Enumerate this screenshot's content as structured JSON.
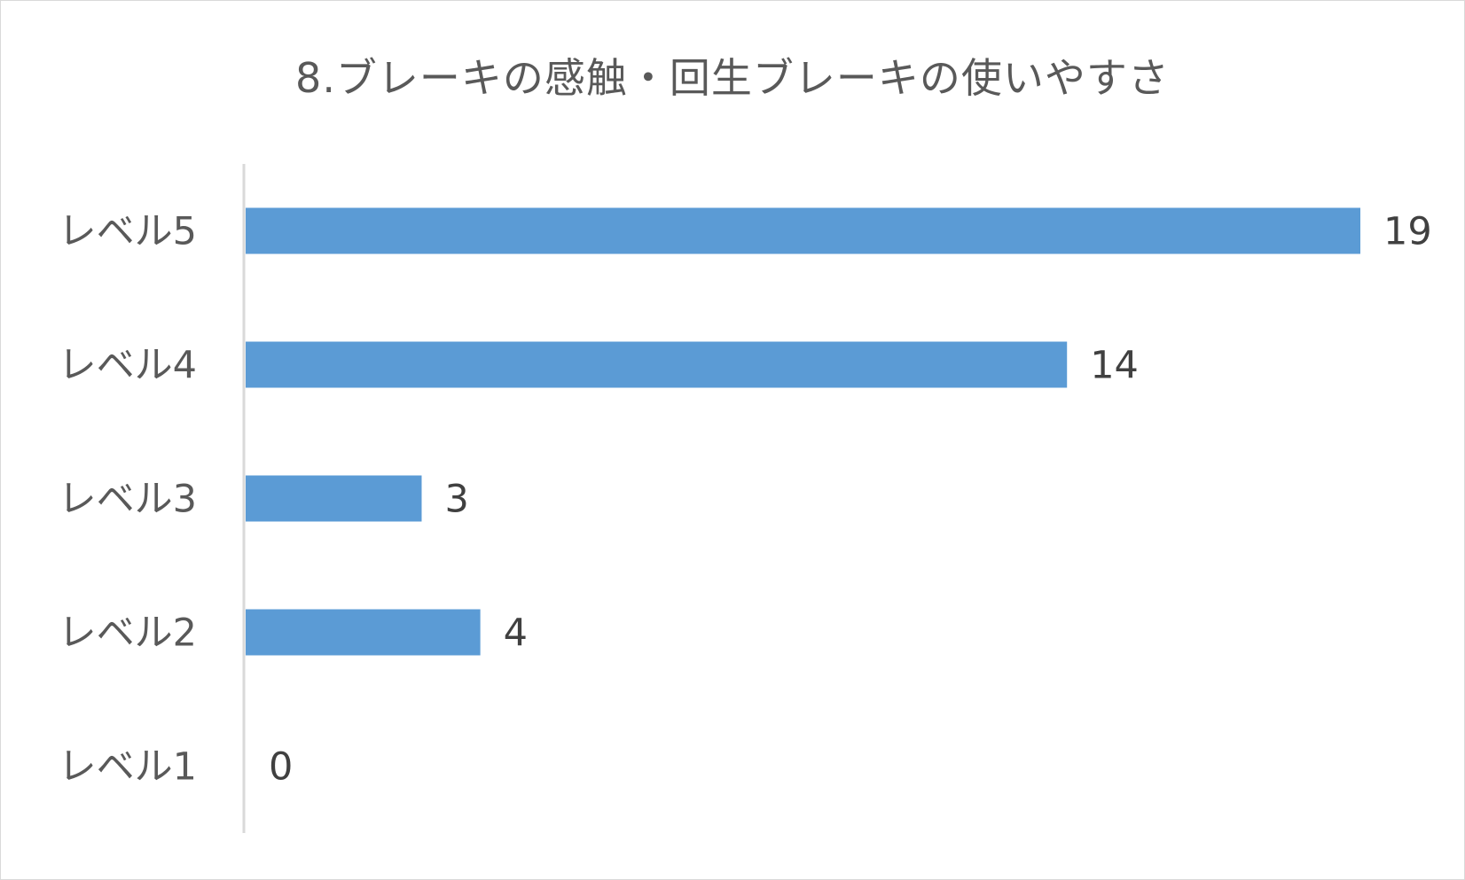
{
  "chart_data": {
    "type": "bar",
    "orientation": "horizontal",
    "title": "8.ブレーキの感触・回生ブレーキの使いやすさ",
    "xlabel": "",
    "ylabel": "",
    "categories": [
      "レベル5",
      "レベル4",
      "レベル3",
      "レベル2",
      "レベル1"
    ],
    "values": [
      19,
      14,
      3,
      4,
      0
    ],
    "xlim": [
      0,
      19
    ],
    "data_labels": true,
    "grid": false,
    "legend": "none",
    "colors": {
      "bar": "#5B9BD5",
      "axis": "#d9d9d9",
      "text": "#595959"
    }
  }
}
